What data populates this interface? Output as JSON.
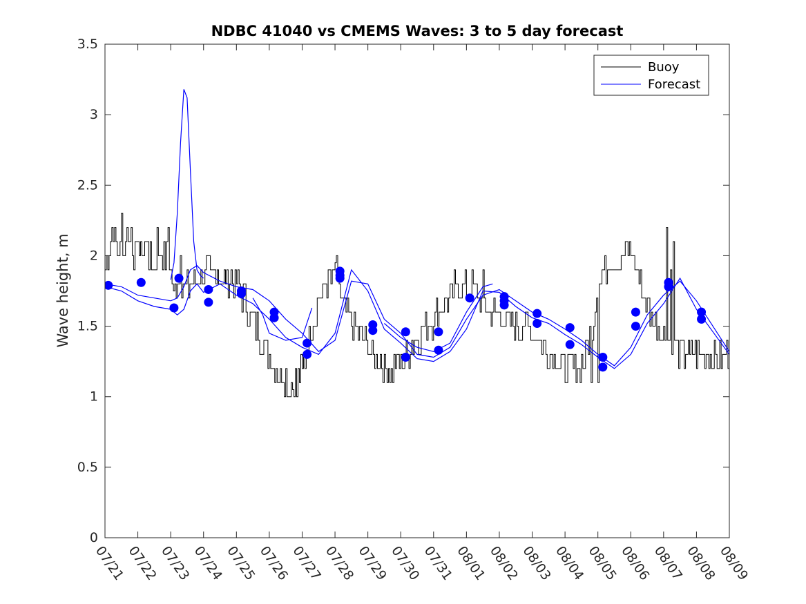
{
  "chart_data": {
    "type": "line",
    "title": "NDBC 41040 vs CMEMS Waves: 3 to 5 day forecast",
    "xlabel": "",
    "ylabel": "Wave height, m",
    "x_range": [
      "07/21",
      "08/09"
    ],
    "ylim": [
      0,
      3.5
    ],
    "yticks": [
      0,
      0.5,
      1,
      1.5,
      2,
      2.5,
      3,
      3.5
    ],
    "ytick_labels": [
      "0",
      "0.5",
      "1",
      "1.5",
      "2",
      "2.5",
      "3",
      "3.5"
    ],
    "xtick_labels": [
      "07/21",
      "07/22",
      "07/23",
      "07/24",
      "07/25",
      "07/26",
      "07/27",
      "07/28",
      "07/29",
      "07/30",
      "07/31",
      "08/01",
      "08/02",
      "08/03",
      "08/04",
      "08/05",
      "08/06",
      "08/07",
      "08/08",
      "08/09"
    ],
    "grid": false,
    "legend_position": "top-right",
    "legend": [
      {
        "label": "Buoy",
        "color": "#000000"
      },
      {
        "label": "Forecast",
        "color": "#0000ff"
      }
    ],
    "buoy_color": "#000000",
    "forecast_color": "#0000ff",
    "buoy": {
      "x": [
        0,
        0.15,
        0.25,
        0.4,
        0.5,
        0.65,
        0.8,
        1.0,
        1.2,
        1.4,
        1.5,
        1.7,
        1.9,
        2.0,
        2.1,
        2.3,
        2.45,
        2.6,
        2.8,
        3.0,
        3.2,
        3.4,
        3.6,
        3.8,
        4.0,
        4.2,
        4.4,
        4.6,
        4.8,
        5.0,
        5.2,
        5.4,
        5.6,
        5.8,
        6.0,
        6.1,
        6.3,
        6.5,
        6.8,
        7.0,
        7.2,
        7.4,
        7.6,
        7.8,
        8.0,
        8.2,
        8.4,
        8.6,
        8.8,
        9.0,
        9.2,
        9.4,
        9.6,
        9.8,
        10.0,
        10.2,
        10.4,
        10.6,
        10.8,
        11.0,
        11.2,
        11.4,
        11.5,
        11.6,
        11.8,
        12.0,
        12.2,
        12.4,
        12.6,
        12.8,
        13.0,
        13.2,
        13.4,
        13.6,
        13.8,
        14.0,
        14.2,
        14.4,
        14.6,
        14.8,
        15.0,
        15.2,
        15.4,
        15.6,
        15.8,
        16.0,
        16.1,
        16.2,
        16.4,
        16.6,
        16.8,
        17.0,
        17.2,
        17.4,
        17.6,
        17.8,
        18.0,
        18.2,
        18.4,
        18.6,
        18.8,
        19.0
      ],
      "y": [
        1.9,
        2.1,
        2.2,
        2.0,
        2.1,
        2.2,
        2.05,
        2.0,
        2.05,
        1.95,
        1.9,
        2.0,
        2.0,
        1.9,
        1.8,
        1.85,
        1.75,
        1.8,
        1.85,
        1.9,
        1.85,
        1.9,
        1.8,
        1.85,
        1.8,
        1.7,
        1.6,
        1.5,
        1.4,
        1.3,
        1.2,
        1.15,
        1.1,
        1.1,
        1.2,
        1.3,
        1.5,
        1.7,
        1.8,
        1.9,
        1.7,
        1.6,
        1.5,
        1.4,
        1.35,
        1.3,
        1.25,
        1.2,
        1.2,
        1.25,
        1.3,
        1.4,
        1.45,
        1.5,
        1.55,
        1.65,
        1.7,
        1.75,
        1.8,
        1.75,
        1.8,
        1.7,
        1.65,
        1.6,
        1.6,
        1.55,
        1.55,
        1.5,
        1.5,
        1.5,
        1.45,
        1.4,
        1.35,
        1.3,
        1.25,
        1.2,
        1.2,
        1.2,
        1.3,
        1.45,
        1.8,
        1.9,
        2.0,
        1.95,
        2.0,
        2.05,
        1.95,
        1.9,
        1.7,
        1.6,
        1.5,
        1.45,
        1.4,
        1.35,
        1.3,
        1.3,
        1.3,
        1.3,
        1.3,
        1.3,
        1.3,
        1.3
      ]
    },
    "buoy_extremes": {
      "x": [
        0.5,
        0.6,
        0.8,
        1.0,
        1.3,
        1.6,
        1.9,
        2.1,
        2.3,
        5.6,
        5.7,
        5.85,
        7.0,
        11.5,
        14.8,
        15.0,
        17.1,
        17.2,
        17.3
      ],
      "y": [
        2.3,
        2.0,
        2.2,
        2.1,
        2.1,
        2.2,
        2.2,
        1.75,
        2.0,
        1.0,
        1.05,
        1.0,
        1.95,
        1.9,
        1.1,
        1.1,
        2.2,
        1.9,
        2.1
      ]
    },
    "forecast_series": [
      {
        "x": [
          0,
          0.5,
          1.0,
          1.5,
          2.0,
          2.2,
          2.4,
          2.6,
          2.8,
          3.0,
          3.5,
          4.0,
          4.5,
          5.0,
          5.5,
          6.0,
          6.5,
          7.0,
          7.5,
          8.0,
          8.5,
          9.0,
          9.5,
          10.0,
          10.5,
          11.0,
          11.5,
          12.0,
          12.5,
          13.0,
          13.5,
          14.0,
          14.5,
          15.0,
          15.5,
          16.0,
          16.5,
          17.0,
          17.5,
          18.0,
          18.5,
          19.0
        ],
        "y": [
          1.8,
          1.78,
          1.72,
          1.7,
          1.68,
          1.7,
          1.78,
          1.9,
          1.93,
          1.88,
          1.82,
          1.78,
          1.76,
          1.68,
          1.55,
          1.45,
          1.32,
          1.4,
          1.82,
          1.8,
          1.55,
          1.45,
          1.3,
          1.28,
          1.35,
          1.55,
          1.72,
          1.76,
          1.68,
          1.6,
          1.55,
          1.48,
          1.4,
          1.3,
          1.22,
          1.35,
          1.58,
          1.72,
          1.82,
          1.68,
          1.5,
          1.32
        ]
      },
      {
        "x": [
          0,
          0.5,
          1.0,
          1.5,
          2.0,
          2.2,
          2.4,
          2.6,
          2.8,
          3.0,
          3.5,
          4.0,
          4.5,
          5.0,
          5.5,
          6.0,
          6.5,
          7.0,
          7.5,
          8.0,
          8.5,
          9.0,
          9.5,
          10.0,
          10.5,
          11.0,
          11.5,
          12.0,
          12.5,
          13.0,
          13.5,
          14.0,
          14.5,
          15.0,
          15.5,
          16.0,
          16.5,
          17.0,
          17.5,
          18.0,
          18.5,
          19.0
        ],
        "y": [
          1.78,
          1.75,
          1.68,
          1.64,
          1.62,
          1.58,
          1.62,
          1.75,
          1.8,
          1.74,
          1.8,
          1.72,
          1.66,
          1.55,
          1.42,
          1.35,
          1.3,
          1.45,
          1.9,
          1.75,
          1.48,
          1.38,
          1.27,
          1.25,
          1.32,
          1.48,
          1.75,
          1.74,
          1.64,
          1.56,
          1.52,
          1.44,
          1.37,
          1.28,
          1.2,
          1.3,
          1.52,
          1.66,
          1.84,
          1.62,
          1.46,
          1.3
        ]
      },
      {
        "x": [
          2.0,
          2.1,
          2.2,
          2.3,
          2.4,
          2.5,
          2.6,
          2.7,
          2.8,
          2.9,
          3.0
        ],
        "y": [
          1.83,
          1.95,
          2.3,
          2.8,
          3.18,
          3.12,
          2.6,
          2.1,
          1.9,
          1.86,
          1.84
        ]
      },
      {
        "x": [
          4.5,
          4.8,
          5.0,
          5.5,
          6.0,
          6.3
        ],
        "y": [
          1.7,
          1.58,
          1.45,
          1.4,
          1.42,
          1.63
        ]
      },
      {
        "x": [
          8.5,
          9.0,
          9.5,
          10.0,
          10.5,
          11.0,
          11.5,
          11.8
        ],
        "y": [
          1.52,
          1.42,
          1.35,
          1.32,
          1.38,
          1.6,
          1.78,
          1.8
        ]
      }
    ],
    "forecast_markers": {
      "x": [
        0.1,
        1.1,
        2.1,
        2.25,
        3.15,
        3.15,
        4.15,
        4.15,
        5.15,
        5.15,
        6.15,
        6.15,
        7.15,
        7.15,
        7.15,
        8.15,
        8.15,
        9.15,
        9.15,
        10.15,
        10.15,
        11.1,
        12.15,
        12.15,
        12.15,
        13.15,
        13.15,
        14.15,
        14.15,
        15.15,
        15.15,
        16.15,
        16.15,
        17.15,
        17.15,
        18.15,
        18.15
      ],
      "y": [
        1.79,
        1.81,
        1.63,
        1.84,
        1.76,
        1.67,
        1.75,
        1.73,
        1.6,
        1.56,
        1.38,
        1.3,
        1.89,
        1.86,
        1.84,
        1.51,
        1.47,
        1.28,
        1.46,
        1.33,
        1.46,
        1.7,
        1.71,
        1.68,
        1.65,
        1.59,
        1.52,
        1.49,
        1.37,
        1.28,
        1.21,
        1.6,
        1.5,
        1.81,
        1.78,
        1.6,
        1.55
      ]
    }
  }
}
